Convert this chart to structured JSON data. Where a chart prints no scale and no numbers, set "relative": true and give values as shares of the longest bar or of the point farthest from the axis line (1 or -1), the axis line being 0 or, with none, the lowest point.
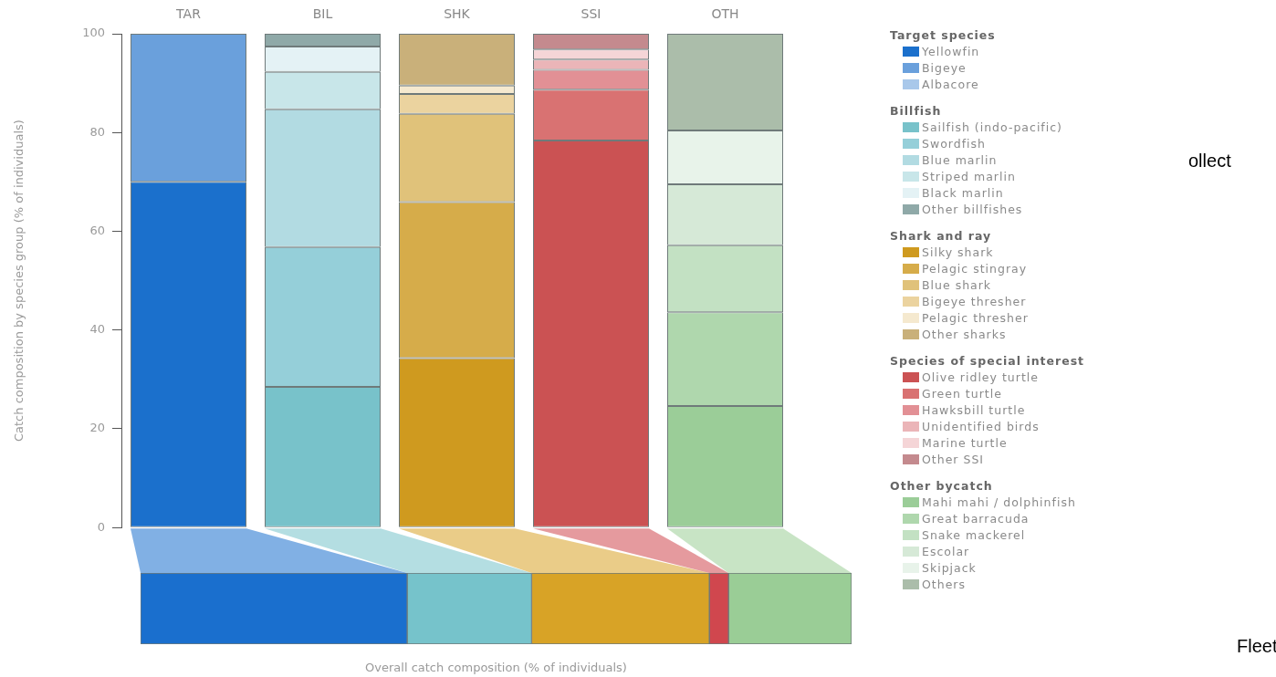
{
  "chart_data": [
    {
      "type": "bar",
      "stacked": true,
      "categories": [
        "TAR",
        "BIL",
        "SHK",
        "SSI",
        "OTH"
      ],
      "ylabel": "Catch composition by species group (% of individuals)",
      "ylim": [
        0,
        100
      ],
      "yticks": [
        0,
        20,
        40,
        60,
        80,
        100
      ],
      "grid": false,
      "legend": "right",
      "annotations": [
        "Target species",
        "Billfish",
        "Shark and ray",
        "Species of special interest",
        "Other bycatch",
        "ollect",
        "Fleet"
      ],
      "series": [
        {
          "name": "Yellowfin",
          "color": "#1b70cc",
          "values": [
            70,
            null,
            null,
            null,
            null
          ]
        },
        {
          "name": "Bigeye",
          "color": "#6aa0dc",
          "values": [
            30,
            null,
            null,
            null,
            null
          ]
        },
        {
          "name": "Albacore",
          "color": "#a9c8ea",
          "values": [
            0,
            null,
            null,
            null,
            null
          ]
        },
        {
          "name": "Sailfish (indo-pacific)",
          "color": "#78c2ca",
          "values": [
            null,
            28.5,
            null,
            null,
            null
          ]
        },
        {
          "name": "Swordfish",
          "color": "#95cfd9",
          "values": [
            null,
            28.3,
            null,
            null,
            null
          ]
        },
        {
          "name": "Blue marlin",
          "color": "#b2dbe2",
          "values": [
            null,
            27.9,
            null,
            null,
            null
          ]
        },
        {
          "name": "Striped marlin",
          "color": "#c8e6e9",
          "values": [
            null,
            7.6,
            null,
            null,
            null
          ]
        },
        {
          "name": "Black marlin",
          "color": "#e4f2f5",
          "values": [
            null,
            5.1,
            null,
            null,
            null
          ]
        },
        {
          "name": "Other billfishes",
          "color": "#8fa9a8",
          "values": [
            null,
            2.6,
            null,
            null,
            null
          ]
        },
        {
          "name": "Silky shark",
          "color": "#cf9a1f",
          "values": [
            null,
            null,
            34.3,
            null,
            null
          ]
        },
        {
          "name": "Pelagic stingray",
          "color": "#d6ac4a",
          "values": [
            null,
            null,
            31.6,
            null,
            null
          ]
        },
        {
          "name": "Blue shark",
          "color": "#e0c27a",
          "values": [
            null,
            null,
            17.9,
            null,
            null
          ]
        },
        {
          "name": "Bigeye thresher",
          "color": "#ebd39f",
          "values": [
            null,
            null,
            4.0,
            null,
            null
          ]
        },
        {
          "name": "Pelagic thresher",
          "color": "#f5e9cf",
          "values": [
            null,
            null,
            1.7,
            null,
            null
          ]
        },
        {
          "name": "Other sharks",
          "color": "#c9b07a",
          "values": [
            null,
            null,
            10.5,
            null,
            null
          ]
        },
        {
          "name": "Olive ridley turtle",
          "color": "#cb5253",
          "values": [
            null,
            null,
            null,
            78.4,
            null
          ]
        },
        {
          "name": "Green turtle",
          "color": "#d97272",
          "values": [
            null,
            null,
            null,
            10.3,
            null
          ]
        },
        {
          "name": "Hawksbill turtle",
          "color": "#e29095",
          "values": [
            null,
            null,
            null,
            4.0,
            null
          ]
        },
        {
          "name": "Unidentified birds",
          "color": "#ebb5b8",
          "values": [
            null,
            null,
            null,
            2.1,
            null
          ]
        },
        {
          "name": "Marine turtle",
          "color": "#f5d5d7",
          "values": [
            null,
            null,
            null,
            2.0,
            null
          ]
        },
        {
          "name": "Other SSI",
          "color": "#c48a8e",
          "values": [
            null,
            null,
            null,
            3.2,
            null
          ]
        },
        {
          "name": "Mahi mahi / dolphinfish",
          "color": "#9bcd98",
          "values": [
            null,
            null,
            null,
            null,
            24.6
          ]
        },
        {
          "name": "Great barracuda",
          "color": "#afd7ad",
          "values": [
            null,
            null,
            null,
            null,
            19.0
          ]
        },
        {
          "name": "Snake mackerel",
          "color": "#c3e1c3",
          "values": [
            null,
            null,
            null,
            null,
            13.6
          ]
        },
        {
          "name": "Escolar",
          "color": "#d6e9d7",
          "values": [
            null,
            null,
            null,
            null,
            12.3
          ]
        },
        {
          "name": "Skipjack",
          "color": "#e8f3ea",
          "values": [
            null,
            null,
            null,
            null,
            10.9
          ]
        },
        {
          "name": "Others",
          "color": "#abbdaa",
          "values": [
            null,
            null,
            null,
            null,
            19.6
          ]
        }
      ]
    },
    {
      "type": "bar",
      "orientation": "horizontal",
      "stacked": true,
      "relative": true,
      "categories": [
        null
      ],
      "xlabel": "Overall catch composition (% of individuals)",
      "series": [
        {
          "color": "#1a6fce",
          "values": [
            0.375
          ]
        },
        {
          "color": "#76c3cb",
          "values": [
            0.175
          ]
        },
        {
          "color": "#d8a326",
          "values": [
            0.25
          ]
        },
        {
          "color": "#d0474e",
          "values": [
            0.027
          ]
        },
        {
          "color": "#9acd96",
          "values": [
            0.173
          ]
        }
      ]
    }
  ]
}
